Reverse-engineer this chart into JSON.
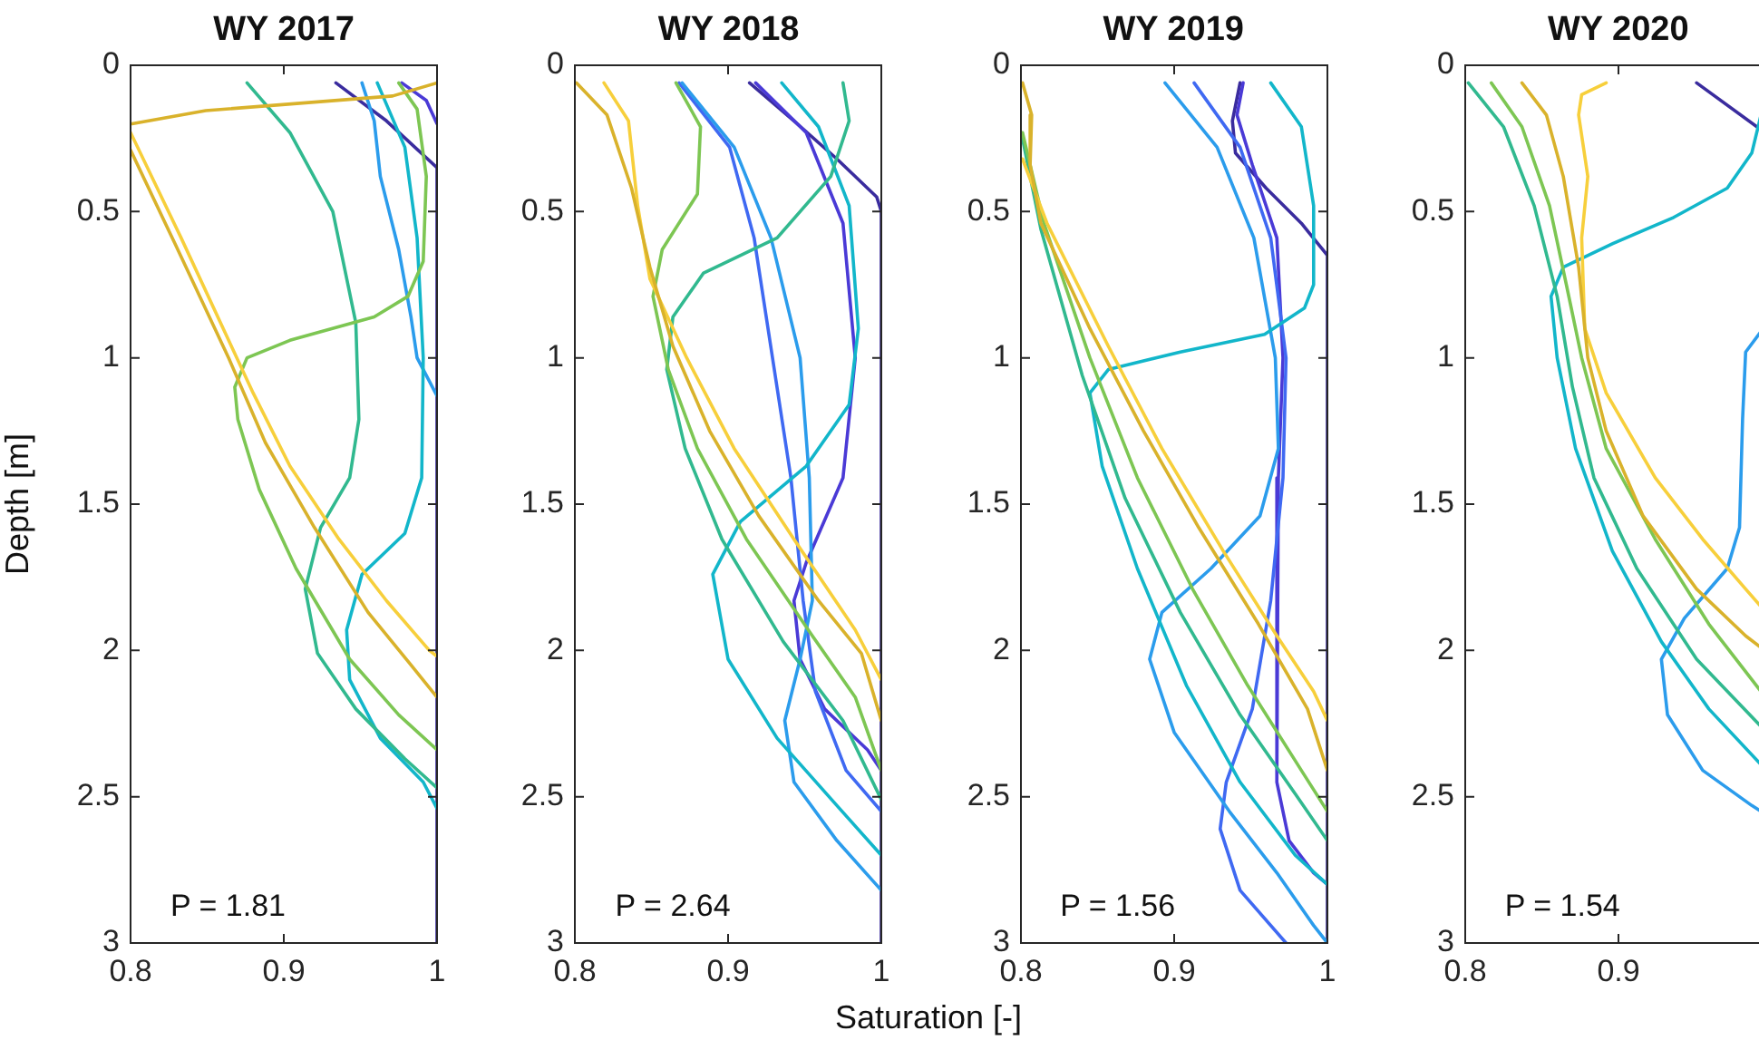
{
  "chart_data": [
    {
      "type": "line",
      "title": "WY 2017",
      "ylabel": "Depth [m]",
      "annotations": [
        "P = 1.81"
      ],
      "xlim": [
        0.8,
        1
      ],
      "ylim": [
        3,
        0
      ],
      "xticks": [
        0.8,
        0.9,
        1
      ],
      "yticks": [
        0,
        0.5,
        1,
        1.5,
        2,
        2.5,
        3
      ],
      "series": [
        {
          "color": "#d9b22b",
          "x": [
            1.0,
            0.971,
            0.849,
            0.801,
            null,
            0.8,
            0.829,
            0.864,
            0.888,
            0.92,
            0.955,
            0.983,
            1.0
          ],
          "values": [
            0.06,
            0.105,
            0.155,
            0.2,
            null,
            0.29,
            0.61,
            1.0,
            1.29,
            1.58,
            1.87,
            2.05,
            2.16
          ]
        },
        {
          "color": "#f7cf3b",
          "x": [
            0.8,
            0.833,
            0.864,
            0.88,
            0.904,
            0.936,
            0.967,
            0.995,
            1.0
          ],
          "values": [
            0.23,
            0.59,
            0.94,
            1.12,
            1.37,
            1.62,
            1.83,
            2.0,
            2.02
          ]
        },
        {
          "color": "#7dc653",
          "x": [
            0.975,
            0.987,
            0.993,
            0.991,
            0.981,
            0.959,
            0.904,
            0.876,
            0.868,
            0.87,
            0.884,
            0.908,
            0.943,
            0.975,
            1.0
          ],
          "values": [
            0.06,
            0.15,
            0.38,
            0.67,
            0.79,
            0.86,
            0.94,
            1.0,
            1.1,
            1.21,
            1.45,
            1.72,
            2.03,
            2.22,
            2.34
          ]
        },
        {
          "color": "#31b98f",
          "x": [
            0.876,
            0.904,
            0.932,
            0.947,
            0.949,
            0.943,
            0.924,
            0.914,
            0.922,
            0.947,
            0.979,
            1.0
          ],
          "values": [
            0.06,
            0.23,
            0.5,
            0.88,
            1.21,
            1.41,
            1.58,
            1.79,
            2.01,
            2.2,
            2.37,
            2.47
          ]
        },
        {
          "color": "#12b6ca",
          "x": [
            0.961,
            0.979,
            0.987,
            0.991,
            0.99,
            0.979,
            0.951,
            0.941,
            0.943,
            0.963,
            0.991,
            1.0
          ],
          "values": [
            0.06,
            0.28,
            0.59,
            1.0,
            1.41,
            1.6,
            1.74,
            1.93,
            2.1,
            2.3,
            2.45,
            2.54
          ]
        },
        {
          "color": "#2b9cec",
          "x": [
            0.951,
            0.959,
            0.963,
            0.975,
            0.983,
            0.987,
            1.0
          ],
          "values": [
            0.06,
            0.19,
            0.38,
            0.63,
            0.86,
            1.0,
            1.13
          ]
        },
        {
          "color": "#4a3ad6",
          "x": [
            0.977,
            0.993,
            1.0
          ],
          "values": [
            0.06,
            0.12,
            0.2
          ]
        },
        {
          "color": "#3a2c9e",
          "x": [
            0.934,
            0.967,
            1.0,
            1.0
          ],
          "values": [
            0.06,
            0.19,
            0.35,
            3.0
          ]
        }
      ]
    },
    {
      "type": "line",
      "title": "WY 2018",
      "xlabel": "Saturation [-]",
      "annotations": [
        "P = 2.64"
      ],
      "xlim": [
        0.8,
        1
      ],
      "ylim": [
        3,
        0
      ],
      "xticks": [
        0.8,
        0.9,
        1
      ],
      "yticks": [
        0,
        0.5,
        1,
        1.5,
        2,
        2.5,
        3
      ],
      "series": [
        {
          "color": "#d9b22b",
          "x": [
            0.801,
            0.821,
            0.837,
            0.849,
            0.864,
            0.888,
            0.92,
            0.959,
            0.987,
            1.0
          ],
          "values": [
            0.06,
            0.17,
            0.42,
            0.69,
            0.96,
            1.25,
            1.54,
            1.83,
            2.01,
            2.24
          ]
        },
        {
          "color": "#f7cf3b",
          "x": [
            0.819,
            0.835,
            0.841,
            0.849,
            0.873,
            0.904,
            0.943,
            0.983,
            1.0
          ],
          "values": [
            0.06,
            0.19,
            0.48,
            0.73,
            1.0,
            1.31,
            1.62,
            1.93,
            2.1
          ]
        },
        {
          "color": "#7dc653",
          "x": [
            0.866,
            0.882,
            0.88,
            0.857,
            0.851,
            0.861,
            0.88,
            0.912,
            0.955,
            0.983,
            1.0
          ],
          "values": [
            0.06,
            0.21,
            0.44,
            0.63,
            0.79,
            1.04,
            1.31,
            1.62,
            1.95,
            2.16,
            2.41
          ]
        },
        {
          "color": "#31b98f",
          "x": [
            0.975,
            0.979,
            0.967,
            0.932,
            0.884,
            0.864,
            0.86,
            0.872,
            0.896,
            0.936,
            0.975,
            1.0
          ],
          "values": [
            0.06,
            0.19,
            0.38,
            0.59,
            0.71,
            0.86,
            1.04,
            1.31,
            1.62,
            1.97,
            2.24,
            2.51
          ]
        },
        {
          "color": "#12b6ca",
          "x": [
            0.935,
            0.959,
            0.979,
            0.985,
            0.979,
            0.951,
            0.908,
            0.89,
            0.9,
            0.932,
            0.971,
            1.0
          ],
          "values": [
            0.06,
            0.21,
            0.48,
            0.9,
            1.16,
            1.37,
            1.56,
            1.74,
            2.03,
            2.3,
            2.53,
            2.7
          ]
        },
        {
          "color": "#2b9cec",
          "x": [
            0.87,
            0.904,
            0.928,
            0.947,
            0.953,
            0.955,
            0.947,
            0.937,
            0.943,
            0.971,
            1.0
          ],
          "values": [
            0.06,
            0.28,
            0.59,
            1.0,
            1.41,
            1.83,
            2.03,
            2.24,
            2.45,
            2.65,
            2.82
          ]
        },
        {
          "color": "#3f69f2",
          "x": [
            0.868,
            0.901,
            0.917,
            0.929,
            0.941,
            0.949,
            0.957,
            0.977,
            1.0
          ],
          "values": [
            0.06,
            0.28,
            0.59,
            1.0,
            1.41,
            1.83,
            2.14,
            2.41,
            2.55
          ]
        },
        {
          "color": "#4a3ad6",
          "x": [
            0.918,
            0.951,
            0.975,
            0.983,
            0.975,
            0.951,
            0.943,
            0.947,
            0.963,
            0.991,
            1.0
          ],
          "values": [
            0.06,
            0.23,
            0.54,
            1.0,
            1.41,
            1.7,
            1.83,
            2.03,
            2.2,
            2.34,
            2.41
          ]
        },
        {
          "color": "#3a2c9e",
          "x": [
            0.914,
            0.943,
            0.971,
            0.997,
            1.0,
            1.0
          ],
          "values": [
            0.06,
            0.19,
            0.32,
            0.45,
            0.5,
            3.0
          ]
        }
      ]
    },
    {
      "type": "line",
      "title": "WY 2019",
      "annotations": [
        "P = 1.56"
      ],
      "xlim": [
        0.8,
        1
      ],
      "ylim": [
        3,
        0
      ],
      "xticks": [
        0.8,
        0.9,
        1
      ],
      "yticks": [
        0,
        0.5,
        1,
        1.5,
        2,
        2.5,
        3
      ],
      "series": [
        {
          "color": "#d9b22b",
          "x": [
            0.801,
            0.807,
            0.806,
            0.813,
            0.845,
            0.88,
            0.916,
            0.955,
            0.987,
            1.0
          ],
          "values": [
            0.06,
            0.17,
            0.34,
            0.54,
            0.9,
            1.25,
            1.58,
            1.91,
            2.2,
            2.41
          ]
        },
        {
          "color": "#f7cf3b",
          "x": [
            0.801,
            0.817,
            0.857,
            0.892,
            0.932,
            0.967,
            0.991,
            1.0
          ],
          "values": [
            0.32,
            0.54,
            0.96,
            1.31,
            1.66,
            1.95,
            2.14,
            2.24
          ]
        },
        {
          "color": "#7dc653",
          "x": [
            0.801,
            0.815,
            0.845,
            0.876,
            0.912,
            0.948,
            0.983,
            1.0
          ],
          "values": [
            0.23,
            0.54,
            1.0,
            1.41,
            1.79,
            2.12,
            2.41,
            2.55
          ]
        },
        {
          "color": "#31b98f",
          "x": [
            0.801,
            0.813,
            0.84,
            0.868,
            0.904,
            0.943,
            0.979,
            1.0
          ],
          "values": [
            0.25,
            0.56,
            1.06,
            1.48,
            1.87,
            2.22,
            2.49,
            2.65
          ]
        },
        {
          "color": "#12b6ca",
          "x": [
            0.963,
            0.983,
            0.991,
            0.991,
            0.985,
            0.959,
            0.904,
            0.857,
            0.845,
            0.853,
            0.876,
            0.908,
            0.943,
            0.979,
            1.0
          ],
          "values": [
            0.06,
            0.21,
            0.48,
            0.75,
            0.83,
            0.92,
            0.98,
            1.04,
            1.12,
            1.37,
            1.72,
            2.12,
            2.45,
            2.7,
            2.8
          ]
        },
        {
          "color": "#2b9cec",
          "x": [
            0.894,
            0.928,
            0.952,
            0.966,
            0.968,
            0.956,
            0.924,
            0.892,
            0.884,
            0.9,
            0.936,
            0.967,
            0.991,
            1.0
          ],
          "values": [
            0.06,
            0.28,
            0.59,
            1.0,
            1.31,
            1.54,
            1.72,
            1.87,
            2.03,
            2.28,
            2.55,
            2.76,
            2.94,
            3.0
          ]
        },
        {
          "color": "#3f69f2",
          "x": [
            0.913,
            0.943,
            0.963,
            0.973,
            0.971,
            0.963,
            0.951,
            0.934,
            0.93,
            0.943,
            0.973
          ],
          "values": [
            0.06,
            0.28,
            0.59,
            1.0,
            1.41,
            1.83,
            2.2,
            2.45,
            2.61,
            2.82,
            3.0
          ]
        },
        {
          "color": "#4a3ad6",
          "x": [
            0.945,
            0.941,
            0.951,
            0.967,
            0.971,
            0.968,
            0.967,
            0.975,
            0.991,
            1.0
          ],
          "values": [
            0.06,
            0.17,
            0.34,
            0.59,
            1.0,
            1.41,
            2.45,
            2.65,
            2.76,
            2.8
          ]
        },
        {
          "color": "#3a2c9e",
          "x": [
            0.943,
            0.938,
            0.94,
            0.96,
            0.983,
            1.0,
            1.0
          ],
          "values": [
            0.06,
            0.19,
            0.3,
            0.42,
            0.54,
            0.65,
            3.0
          ]
        }
      ]
    },
    {
      "type": "line",
      "title": "WY 2020",
      "annotations": [
        "P = 1.54"
      ],
      "xlim": [
        0.8,
        1
      ],
      "ylim": [
        3,
        0
      ],
      "xticks": [
        0.8,
        0.9
      ],
      "yticks": [
        0,
        0.5,
        1,
        1.5,
        2,
        2.5,
        3
      ],
      "series": [
        {
          "color": "#d9b22b",
          "x": [
            0.837,
            0.853,
            0.864,
            0.874,
            0.88,
            0.892,
            0.916,
            0.951,
            0.983,
            0.993
          ],
          "values": [
            0.06,
            0.17,
            0.38,
            0.69,
            1.0,
            1.25,
            1.54,
            1.79,
            1.95,
            1.99
          ]
        },
        {
          "color": "#f7cf3b",
          "x": [
            0.892,
            0.876,
            0.874,
            0.88,
            0.876,
            0.878,
            0.892,
            0.924,
            0.955,
            0.983,
            0.993
          ],
          "values": [
            0.06,
            0.1,
            0.17,
            0.38,
            0.59,
            0.9,
            1.12,
            1.41,
            1.62,
            1.79,
            1.85
          ]
        },
        {
          "color": "#7dc653",
          "x": [
            0.817,
            0.837,
            0.855,
            0.866,
            0.876,
            0.892,
            0.924,
            0.959,
            0.993
          ],
          "values": [
            0.06,
            0.21,
            0.48,
            0.75,
            1.0,
            1.31,
            1.62,
            1.91,
            2.14
          ]
        },
        {
          "color": "#31b98f",
          "x": [
            0.802,
            0.825,
            0.845,
            0.86,
            0.87,
            0.884,
            0.912,
            0.951,
            0.993
          ],
          "values": [
            0.06,
            0.21,
            0.48,
            0.79,
            1.1,
            1.41,
            1.72,
            2.03,
            2.26
          ]
        },
        {
          "color": "#12b6ca",
          "x": [
            0.993,
            0.987,
            0.971,
            0.936,
            0.896,
            0.864,
            0.856,
            0.86,
            0.872,
            0.896,
            0.928,
            0.959,
            0.993
          ],
          "values": [
            0.17,
            0.3,
            0.42,
            0.52,
            0.61,
            0.69,
            0.79,
            1.0,
            1.31,
            1.66,
            1.97,
            2.2,
            2.39
          ]
        },
        {
          "color": "#2b9cec",
          "x": [
            0.993,
            0.983,
            0.981,
            0.979,
            0.971,
            0.943,
            0.928,
            0.932,
            0.955,
            0.987,
            0.993
          ],
          "values": [
            0.91,
            0.98,
            1.21,
            1.58,
            1.72,
            1.89,
            2.03,
            2.22,
            2.41,
            2.53,
            2.55
          ]
        },
        {
          "color": "#3a2c9e",
          "x": [
            0.951,
            0.993
          ],
          "values": [
            0.06,
            0.22
          ]
        }
      ]
    }
  ]
}
